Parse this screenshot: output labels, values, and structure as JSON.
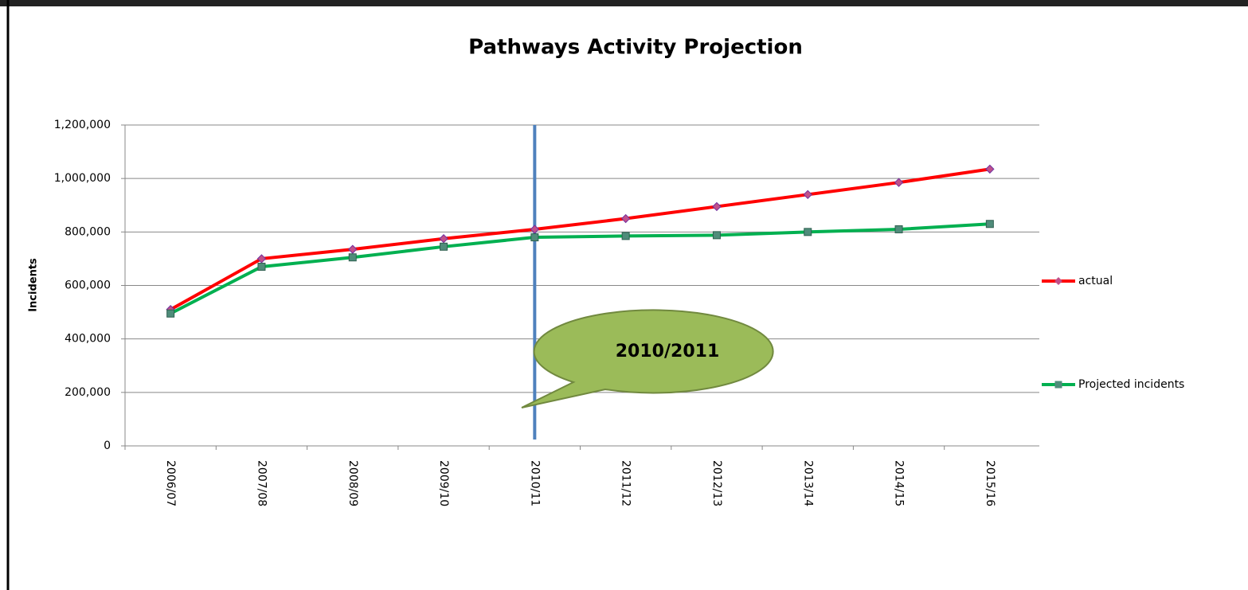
{
  "chart_data": {
    "type": "line",
    "title": "Pathways Activity Projection",
    "ylabel": "Incidents",
    "categories": [
      "2006/07",
      "2007/08",
      "2008/09",
      "2009/10",
      "2010/11",
      "2011/12",
      "2012/13",
      "2013/14",
      "2014/15",
      "2015/16"
    ],
    "series": [
      {
        "name": "actual",
        "color": "#ff0000",
        "marker": "diamond",
        "values": [
          510000,
          700000,
          735000,
          775000,
          810000,
          850000,
          895000,
          940000,
          985000,
          1035000
        ]
      },
      {
        "name": "Projected incidents",
        "color": "#00b050",
        "marker": "square",
        "values": [
          495000,
          670000,
          705000,
          745000,
          780000,
          785000,
          788000,
          800000,
          810000,
          830000
        ]
      }
    ],
    "ylim": [
      0,
      1200000
    ],
    "yticks": [
      0,
      {
        "value": 200000,
        "label": "200,000"
      },
      {
        "value": 400000,
        "label": "400,000"
      },
      {
        "value": 600000,
        "label": "600,000"
      },
      {
        "value": 800000,
        "label": "800,000"
      },
      {
        "value": 1000000,
        "label": "1,000,000"
      },
      {
        "value": 1200000,
        "label": "1,200,000"
      }
    ],
    "grid": true,
    "legend": "right",
    "annotation": "2010/2011"
  }
}
